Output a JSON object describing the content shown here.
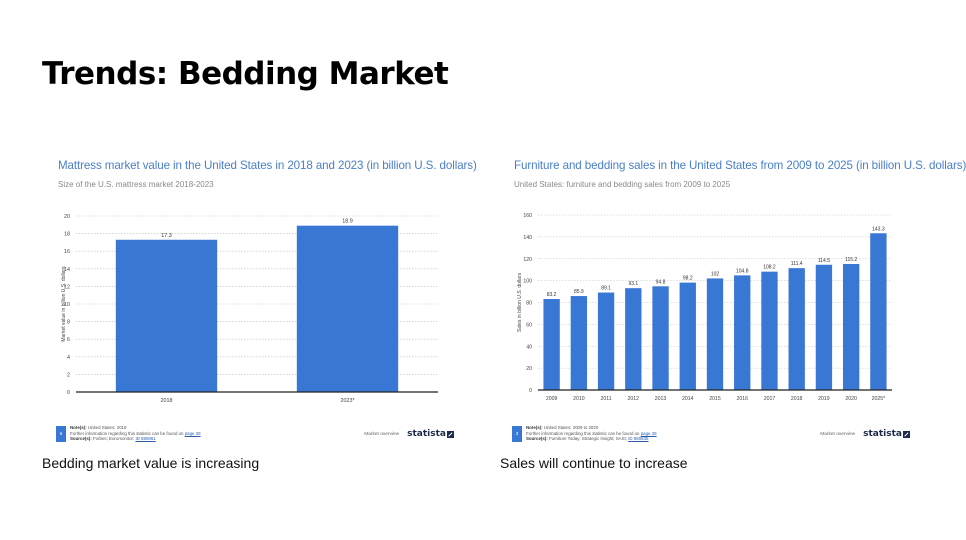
{
  "slide": {
    "title": "Trends: Bedding Market",
    "caption_left": "Bedding market value is increasing",
    "caption_right": "Sales will continue to increase"
  },
  "colors": {
    "bar": "#3977d5",
    "title": "#4a7fc8",
    "grid": "#bfbfbf"
  },
  "chart_data": [
    {
      "type": "bar",
      "title": "Mattress market value in the United States in 2018 and 2023 (in billion U.S. dollars)",
      "subtitle": "Size of the U.S. mattress market 2018-2023",
      "xlabel": "",
      "ylabel": "Market value in billion U.S. dollars",
      "categories": [
        "2018",
        "2023*"
      ],
      "values": [
        17.3,
        18.9
      ],
      "value_labels": [
        "17.3",
        "18.9"
      ],
      "ylim": [
        0,
        20
      ],
      "yticks": [
        0,
        2,
        4,
        6,
        8,
        10,
        12,
        14,
        16,
        18,
        20
      ],
      "grid": true,
      "footer": {
        "page": "6",
        "note_label": "Note(s):",
        "note_text": "United States; 2018",
        "more_info": "Further information regarding this statistic can be found on",
        "more_info_link": "page 28",
        "source_label": "Source(s):",
        "source_text": "Forbes; Euromonitor;",
        "source_id": "ID 880861",
        "market_overview": "Market overview",
        "logo": "statista"
      }
    },
    {
      "type": "bar",
      "title": "Furniture and bedding sales in the United States from 2009 to 2025 (in billion U.S. dollars)",
      "subtitle": "United States: furniture and bedding sales from 2009 to 2025",
      "xlabel": "",
      "ylabel": "Sales in billion U.S. dollars",
      "categories": [
        "2009",
        "2010",
        "2011",
        "2012",
        "2013",
        "2014",
        "2015",
        "2016",
        "2017",
        "2018",
        "2019",
        "2020",
        "2025*"
      ],
      "values": [
        83.2,
        85.9,
        89.1,
        93.1,
        94.8,
        98.2,
        102,
        104.8,
        108.2,
        111.4,
        114.5,
        115.2,
        143.3
      ],
      "value_labels": [
        "83.2",
        "85.9",
        "89.1",
        "93.1",
        "94.8",
        "98.2",
        "102",
        "104.8",
        "108.2",
        "111.4",
        "114.5",
        "115.2",
        "143.3"
      ],
      "ylim": [
        0,
        160
      ],
      "yticks": [
        0,
        20,
        40,
        60,
        80,
        100,
        120,
        140,
        160
      ],
      "grid": true,
      "footer": {
        "page": "3",
        "note_label": "Note(s):",
        "note_text": "United States; 2009 to 2020",
        "more_info": "Further information regarding this statistic can be found on",
        "more_info_link": "page 28",
        "source_label": "Source(s):",
        "source_text": "Furniture Today; Strategic Insight; SASI;",
        "source_id": "ID 880835",
        "market_overview": "Market overview",
        "logo": "statista"
      }
    }
  ]
}
